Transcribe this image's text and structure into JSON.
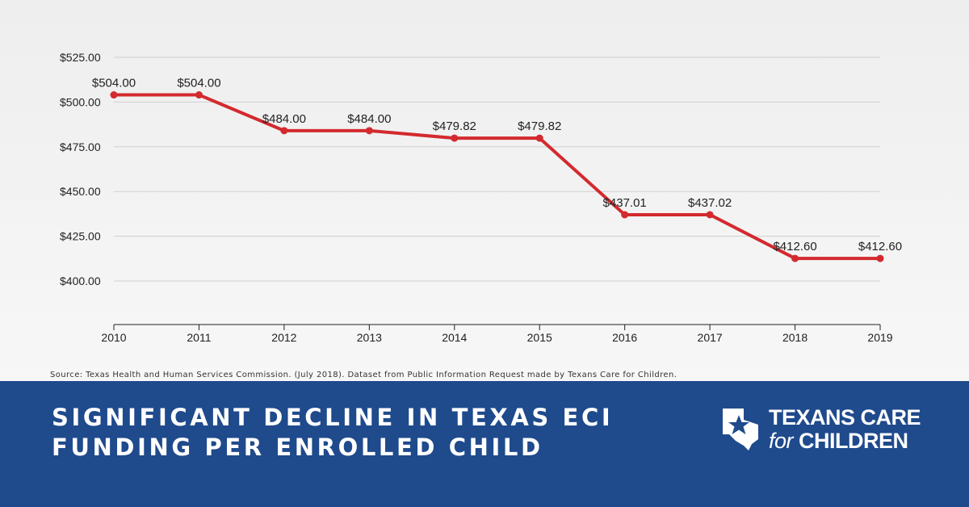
{
  "chart_data": {
    "type": "line",
    "x": [
      "2010",
      "2011",
      "2012",
      "2013",
      "2014",
      "2015",
      "2016",
      "2017",
      "2018",
      "2019"
    ],
    "series": [
      {
        "values": [
          504.0,
          504.0,
          484.0,
          484.0,
          479.82,
          479.82,
          437.01,
          437.02,
          412.6,
          412.6
        ],
        "labels": [
          "$504.00",
          "$504.00",
          "$484.00",
          "$484.00",
          "$479.82",
          "$479.82",
          "$437.01",
          "$437.02",
          "$412.60",
          "$412.60"
        ]
      }
    ],
    "y_ticks": [
      400,
      425,
      450,
      475,
      500,
      525
    ],
    "y_tick_labels": [
      "$400.00",
      "$425.00",
      "$450.00",
      "$475.00",
      "$500.00",
      "$525.00"
    ],
    "ylim": [
      400,
      525
    ],
    "grid": true,
    "line_color": "#d32a2e"
  },
  "source_note": "Source: Texas Health and Human Services Commission. (July 2018). Dataset from Public Information Request made by Texans Care for Children.",
  "headline": {
    "line1": "SIGNIFICANT DECLINE IN TEXAS ECI",
    "line2": "FUNDING PER ENROLLED CHILD"
  },
  "logo": {
    "line1": "TEXANS CARE",
    "line2_prefix": "for",
    "line2_main": "CHILDREN"
  },
  "colors": {
    "banner": "#1f4a8c",
    "accent": "#d32a2e"
  }
}
